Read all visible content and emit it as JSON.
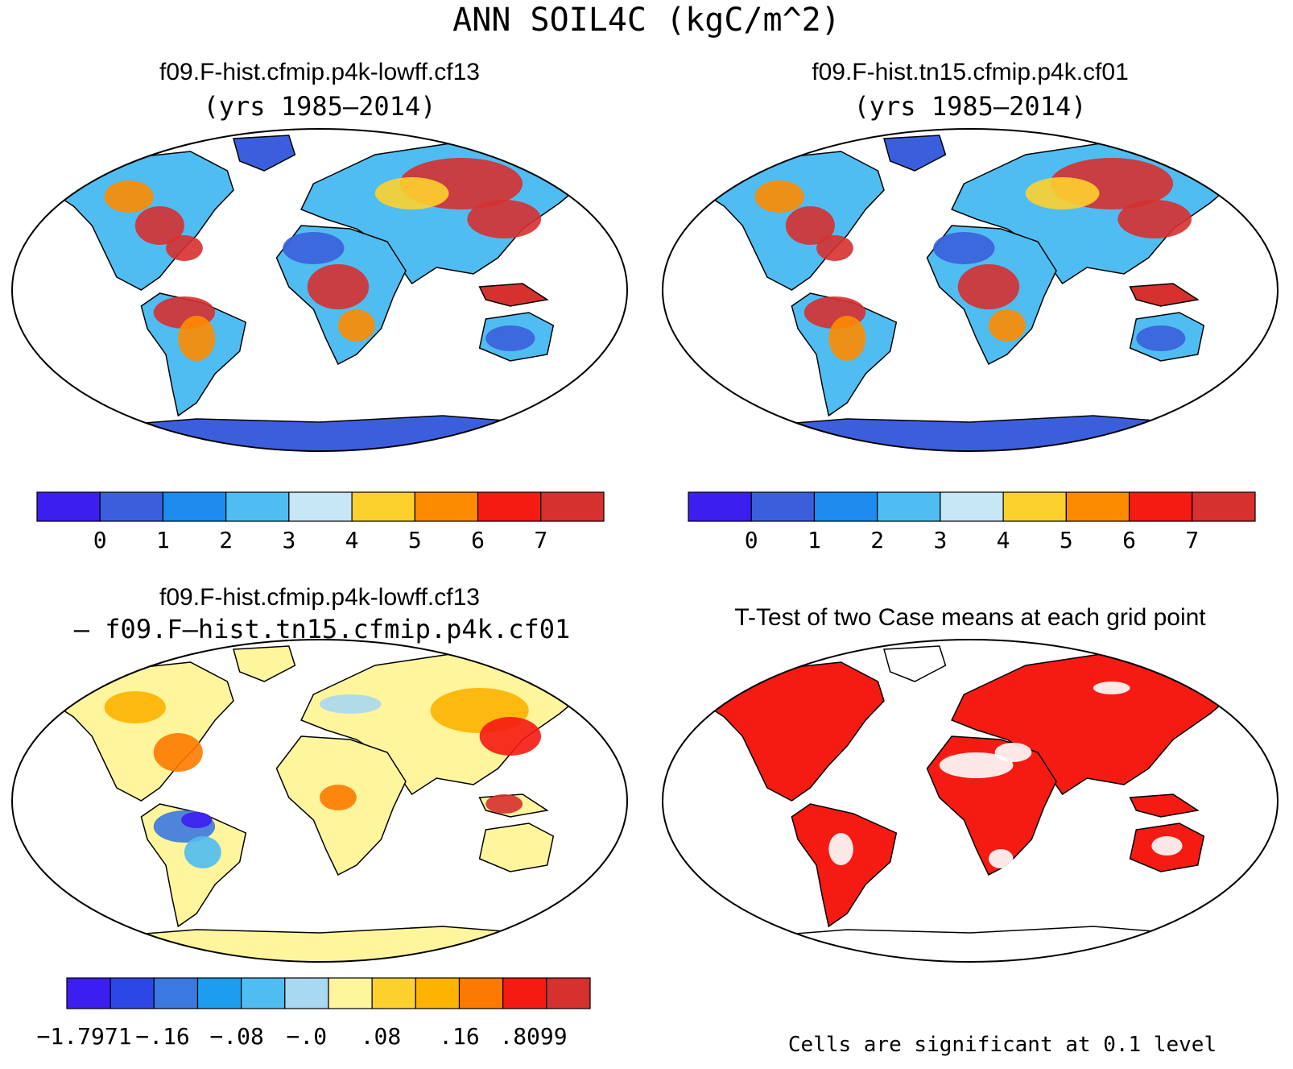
{
  "figure": {
    "main_title": "ANN SOIL4C (kgC/m^2)"
  },
  "panels": [
    {
      "id": "case1",
      "title_line1": "f09.F-hist.cfmip.p4k-lowff.cf13",
      "title_line2": "(yrs 1985–2014)",
      "type": "map"
    },
    {
      "id": "case2",
      "title_line1": "f09.F-hist.tn15.cfmip.p4k.cf01",
      "title_line2": "(yrs 1985–2014)",
      "type": "map"
    },
    {
      "id": "diff",
      "title_line1": "f09.F-hist.cfmip.p4k-lowff.cf13",
      "title_line2": "– f09.F–hist.tn15.cfmip.p4k.cf01",
      "type": "map"
    },
    {
      "id": "ttest",
      "title_line1": "T-Test of two Case means at each grid point",
      "title_line2": "",
      "type": "map",
      "footnote": "Cells are significant at 0.1 level"
    }
  ],
  "colorbars": {
    "absolute": {
      "colors": [
        "#3d1ef0",
        "#3b5fdc",
        "#1d8cee",
        "#4fbdf1",
        "#c7e6f6",
        "#fdd12d",
        "#fd8b00",
        "#f51a12",
        "#d6302f"
      ],
      "labels": [
        "0",
        "1",
        "2",
        "3",
        "4",
        "5",
        "6",
        "7"
      ]
    },
    "difference": {
      "colors": [
        "#3d1ef0",
        "#2c47e6",
        "#3b78e0",
        "#1d9ded",
        "#4fbdf1",
        "#a9d8f2",
        "#fff59d",
        "#fdd12d",
        "#fdb300",
        "#fd7a00",
        "#f51a12",
        "#d6302f"
      ],
      "labels": [
        "−1.7971",
        "−.16",
        "−.08",
        "−.0",
        ".08",
        ".16",
        ".8099"
      ]
    }
  },
  "colors": {
    "land_low": "#3b5fdc",
    "land_mid": "#4fbdf1",
    "land_high": "#d6302f",
    "diff_neutral": "#fff59d",
    "significant": "#f51a12",
    "outline": "#000000"
  }
}
